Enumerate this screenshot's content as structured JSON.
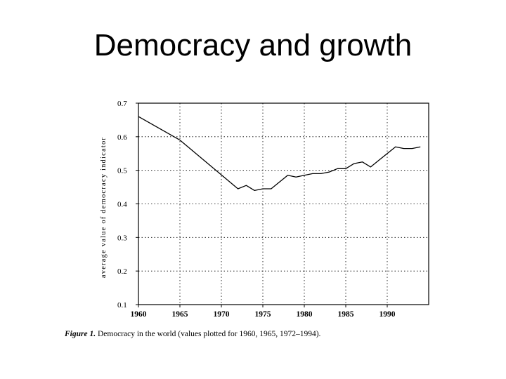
{
  "slide": {
    "title": "Democracy and growth"
  },
  "caption": {
    "label": "Figure 1.",
    "text": "Democracy in the world (values plotted for 1960, 1965, 1972–1994)."
  },
  "chart_data": {
    "type": "line",
    "title": "",
    "xlabel": "",
    "ylabel": "average value of democracy indicator",
    "xlim": [
      1960,
      1995
    ],
    "ylim": [
      0.1,
      0.7
    ],
    "xticks": [
      1960,
      1965,
      1970,
      1975,
      1980,
      1985,
      1990
    ],
    "xtick_labels": [
      "1960",
      "1965",
      "1970",
      "1975",
      "1980",
      "1985",
      "1990"
    ],
    "yticks": [
      0.1,
      0.2,
      0.3,
      0.4,
      0.5,
      0.6,
      0.7
    ],
    "ytick_labels": [
      "0.1",
      "0.2",
      "0.3",
      "0.4",
      "0.5",
      "0.6",
      "0.7"
    ],
    "grid": true,
    "series": [
      {
        "x": [
          1960,
          1965,
          1972,
          1973,
          1974,
          1975,
          1976,
          1977,
          1978,
          1979,
          1980,
          1981,
          1982,
          1983,
          1984,
          1985,
          1986,
          1987,
          1988,
          1989,
          1990,
          1991,
          1992,
          1993,
          1994
        ],
        "values": [
          0.66,
          0.59,
          0.445,
          0.455,
          0.44,
          0.445,
          0.445,
          0.465,
          0.485,
          0.48,
          0.485,
          0.49,
          0.49,
          0.495,
          0.505,
          0.505,
          0.52,
          0.525,
          0.51,
          0.53,
          0.55,
          0.57,
          0.565,
          0.565,
          0.57
        ]
      }
    ]
  }
}
